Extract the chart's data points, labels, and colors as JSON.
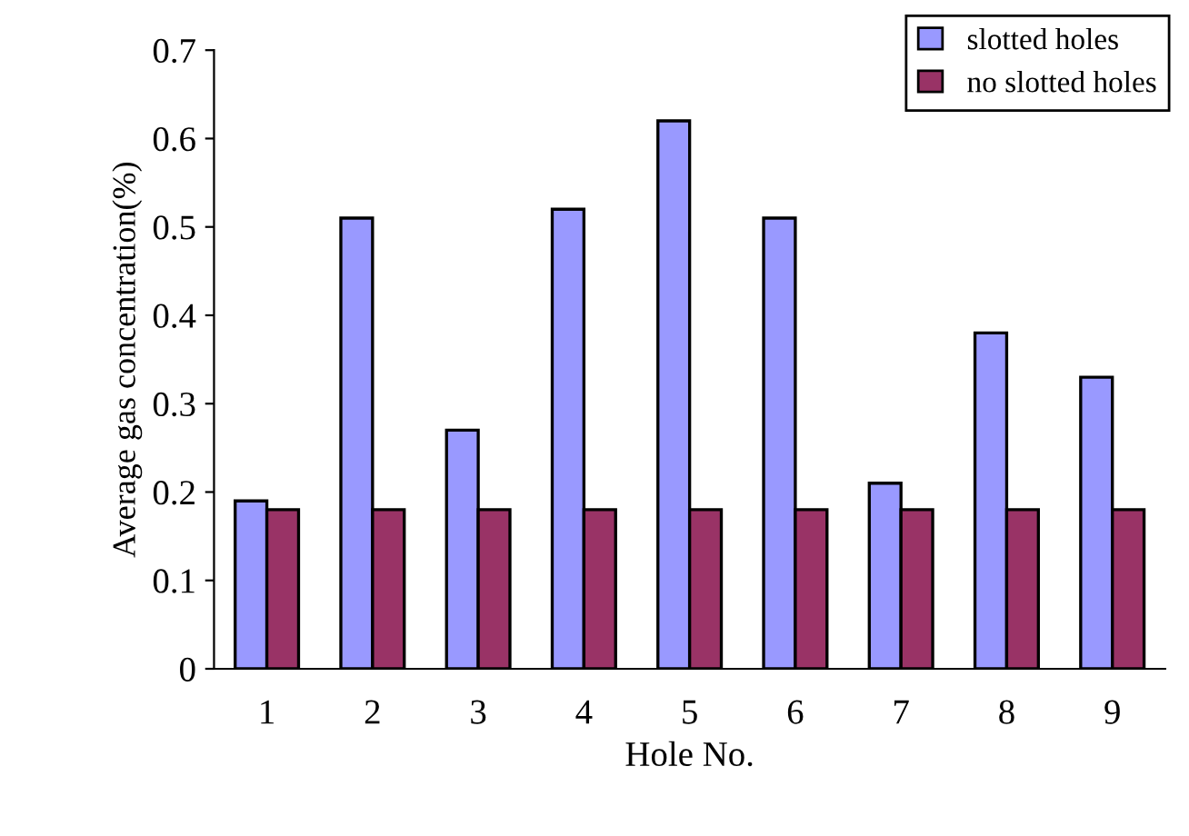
{
  "chart_data": {
    "type": "bar",
    "xlabel": "Hole No.",
    "ylabel": "Average gas concentration(%)",
    "categories": [
      "1",
      "2",
      "3",
      "4",
      "5",
      "6",
      "7",
      "8",
      "9"
    ],
    "series": [
      {
        "name": "slotted holes",
        "color": "#9999ff",
        "values": [
          0.19,
          0.51,
          0.27,
          0.52,
          0.62,
          0.51,
          0.21,
          0.38,
          0.33
        ]
      },
      {
        "name": "no slotted holes",
        "color": "#993366",
        "values": [
          0.18,
          0.18,
          0.18,
          0.18,
          0.18,
          0.18,
          0.18,
          0.18,
          0.18
        ]
      }
    ],
    "ylim": [
      0,
      0.7
    ],
    "yticks": [
      {
        "value": 0,
        "label": "0"
      },
      0.1,
      0.2,
      0.3,
      0.4,
      0.5,
      0.6,
      0.7
    ],
    "grid": false,
    "legend": "top right"
  }
}
